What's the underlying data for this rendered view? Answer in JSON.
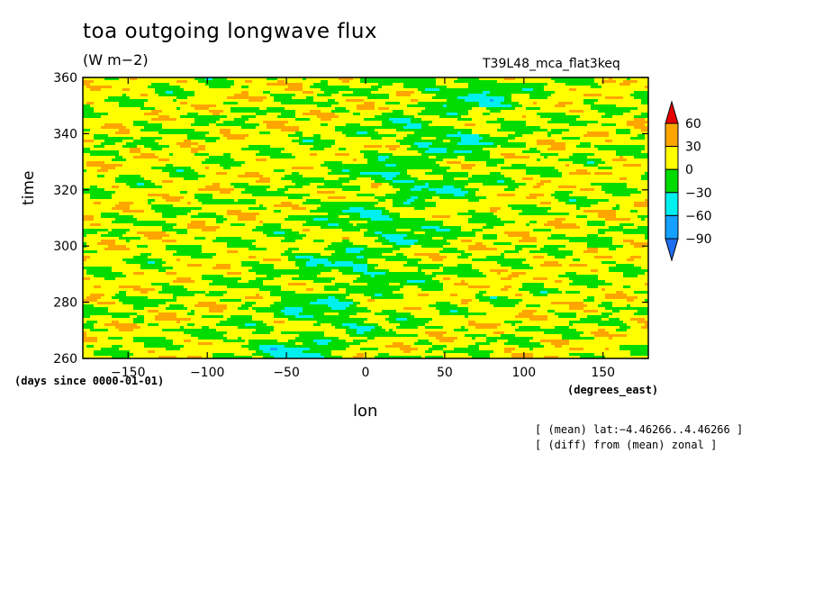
{
  "figure": {
    "title": "toa outgoing longwave flux",
    "units": "(W m−2)",
    "run_id": "T39L48_mca_flat3keq",
    "notes": [
      "[ (mean) lat:−4.46266..4.46266 ]",
      "[ (diff) from (mean) zonal ]"
    ]
  },
  "chart_data": {
    "type": "heatmap",
    "title": "toa outgoing longwave flux",
    "xlabel": "lon",
    "ylabel": "time",
    "x_units": "(degrees_east)",
    "y_units": "(days since 0000-01-01)",
    "xlim": [
      -178.6,
      178.6
    ],
    "ylim": [
      260,
      360
    ],
    "x_ticks": [
      -150,
      -100,
      -50,
      0,
      50,
      100,
      150
    ],
    "x_tick_labels": [
      "−150",
      "−100",
      "−50",
      "0",
      "50",
      "100",
      "150"
    ],
    "y_ticks": [
      260,
      280,
      300,
      320,
      340,
      360
    ],
    "y_tick_labels": [
      "260",
      "280",
      "300",
      "320",
      "340",
      "360"
    ],
    "colorbar": {
      "levels": [
        -90,
        -60,
        -30,
        0,
        30,
        60
      ],
      "level_labels": [
        "−90",
        "−60",
        "−30",
        "0",
        "30",
        "60"
      ],
      "colors": [
        "#1e6ef0",
        "#14a0ff",
        "#00f0f0",
        "#00dc00",
        "#ffff00",
        "#ffa500",
        "#e60000"
      ],
      "extend": "both"
    },
    "grid": false,
    "legend": "right"
  }
}
